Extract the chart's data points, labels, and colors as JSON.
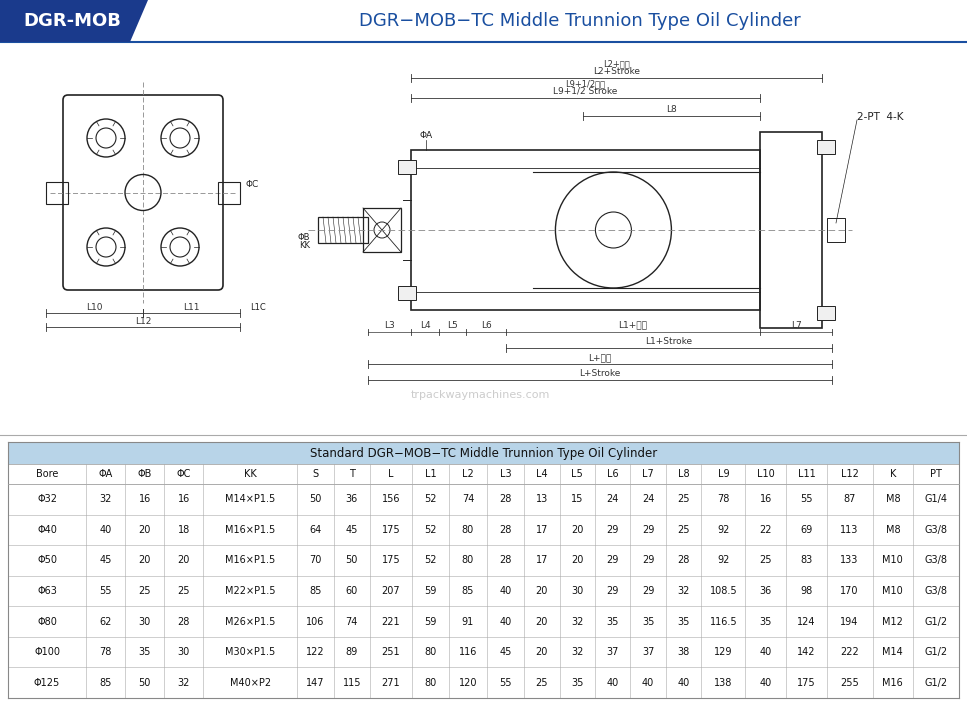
{
  "title": "DGR−MOB−TC Middle Trunnion Type Oil Cylinder",
  "brand": "DGR-MOB",
  "title_color": "#1a4fa0",
  "brand_bg_color": "#1a3a8c",
  "header_bg_color": "#b8d4e8",
  "table_title": "Standard DGR−MOB−TC Middle Trunnion Type Oil Cylinder",
  "col_headers": [
    "Bore",
    "ΦA",
    "ΦB",
    "ΦC",
    "KK",
    "S",
    "T",
    "L",
    "L1",
    "L2",
    "L3",
    "L4",
    "L5",
    "L6",
    "L7",
    "L8",
    "L9",
    "L10",
    "L11",
    "L12",
    "K",
    "PT"
  ],
  "table_data": [
    [
      "Φ32",
      "32",
      "16",
      "16",
      "M14×P1.5",
      "50",
      "36",
      "156",
      "52",
      "74",
      "28",
      "13",
      "15",
      "24",
      "24",
      "25",
      "78",
      "16",
      "55",
      "87",
      "M8",
      "G1/4"
    ],
    [
      "Φ40",
      "40",
      "20",
      "18",
      "M16×P1.5",
      "64",
      "45",
      "175",
      "52",
      "80",
      "28",
      "17",
      "20",
      "29",
      "29",
      "25",
      "92",
      "22",
      "69",
      "113",
      "M8",
      "G3/8"
    ],
    [
      "Φ50",
      "45",
      "20",
      "20",
      "M16×P1.5",
      "70",
      "50",
      "175",
      "52",
      "80",
      "28",
      "17",
      "20",
      "29",
      "29",
      "28",
      "92",
      "25",
      "83",
      "133",
      "M10",
      "G3/8"
    ],
    [
      "Φ63",
      "55",
      "25",
      "25",
      "M22×P1.5",
      "85",
      "60",
      "207",
      "59",
      "85",
      "40",
      "20",
      "30",
      "29",
      "29",
      "32",
      "108.5",
      "36",
      "98",
      "170",
      "M10",
      "G3/8"
    ],
    [
      "Φ80",
      "62",
      "30",
      "28",
      "M26×P1.5",
      "106",
      "74",
      "221",
      "59",
      "91",
      "40",
      "20",
      "32",
      "35",
      "35",
      "35",
      "116.5",
      "35",
      "124",
      "194",
      "M12",
      "G1/2"
    ],
    [
      "Φ100",
      "78",
      "35",
      "30",
      "M30×P1.5",
      "122",
      "89",
      "251",
      "80",
      "116",
      "45",
      "20",
      "32",
      "37",
      "37",
      "38",
      "129",
      "40",
      "142",
      "222",
      "M14",
      "G1/2"
    ],
    [
      "Φ125",
      "85",
      "50",
      "32",
      "M40×P2",
      "147",
      "115",
      "271",
      "80",
      "120",
      "55",
      "25",
      "35",
      "40",
      "40",
      "40",
      "138",
      "40",
      "175",
      "255",
      "M16",
      "G1/2"
    ]
  ],
  "bg_color": "#ffffff",
  "lc": "#222222",
  "lc_dim": "#333333"
}
